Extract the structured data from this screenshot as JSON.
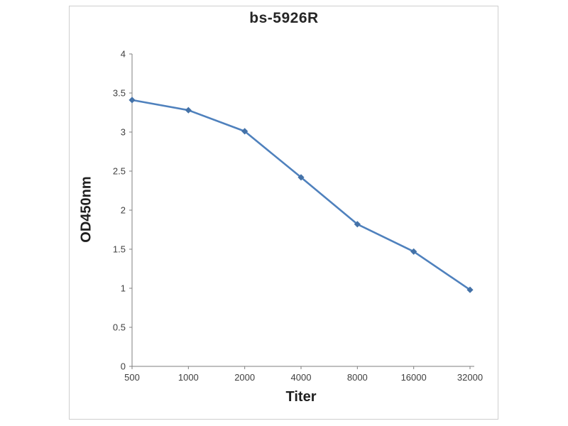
{
  "title": "bs-5926R",
  "chart_data": {
    "type": "line",
    "title": "bs-5926R",
    "xlabel": "Titer",
    "ylabel": "OD450nm",
    "categories": [
      "500",
      "1000",
      "2000",
      "4000",
      "8000",
      "16000",
      "32000"
    ],
    "values": [
      3.41,
      3.28,
      3.01,
      2.42,
      1.82,
      1.47,
      0.98
    ],
    "ylim": [
      0,
      4
    ],
    "ytick_step": 0.5,
    "ytick_labels": [
      "0",
      "0.5",
      "1",
      "1.5",
      "2",
      "2.5",
      "3",
      "3.5",
      "4"
    ],
    "grid": false,
    "legend": "none",
    "line_color": "#4f81bd",
    "marker": "diamond",
    "marker_color": "#4472a8",
    "axis_color": "#7f7f7f",
    "tick_text_color": "#3f3f3f"
  }
}
